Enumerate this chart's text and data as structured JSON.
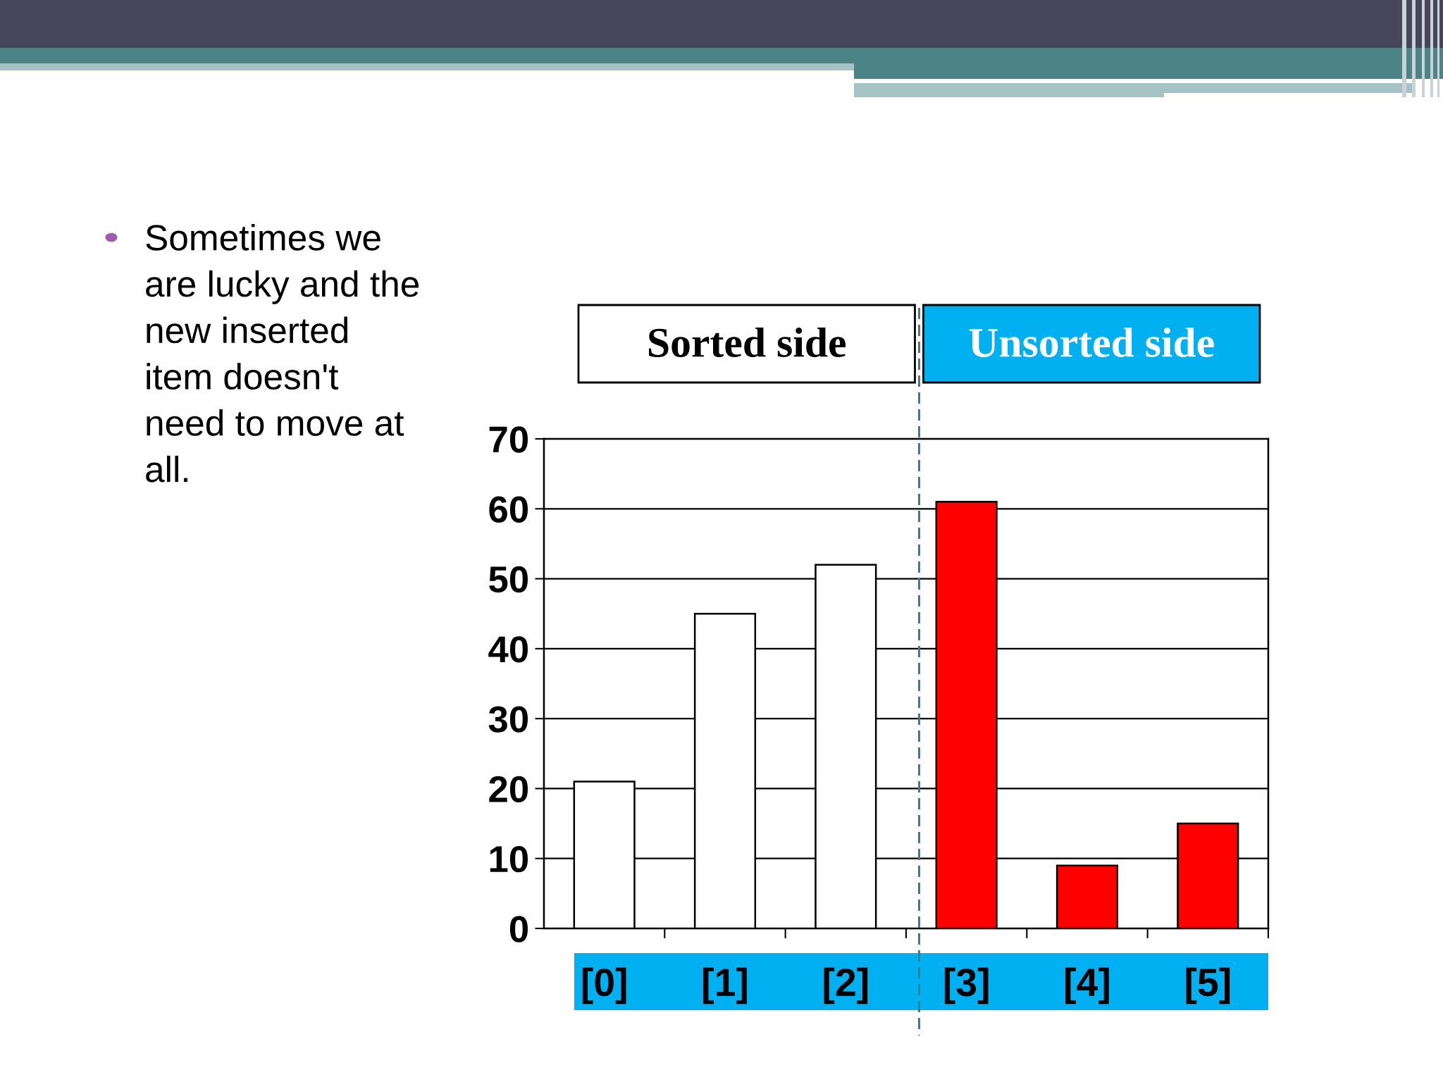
{
  "chart_data": {
    "type": "bar",
    "categories": [
      "[0]",
      "[1]",
      "[2]",
      "[3]",
      "[4]",
      "[5]"
    ],
    "values": [
      21,
      45,
      52,
      61,
      9,
      15
    ],
    "colors": [
      "#ffffff",
      "#ffffff",
      "#ffffff",
      "#ff0000",
      "#ff0000",
      "#ff0000"
    ],
    "ylim": [
      0,
      70
    ],
    "yticks": [
      0,
      10,
      20,
      30,
      40,
      50,
      60,
      70
    ],
    "grid": "y",
    "annotations": [
      "Sometimes we are lucky and the new inserted item doesn't need to move at all.",
      "Sorted side",
      "Unsorted side"
    ]
  }
}
